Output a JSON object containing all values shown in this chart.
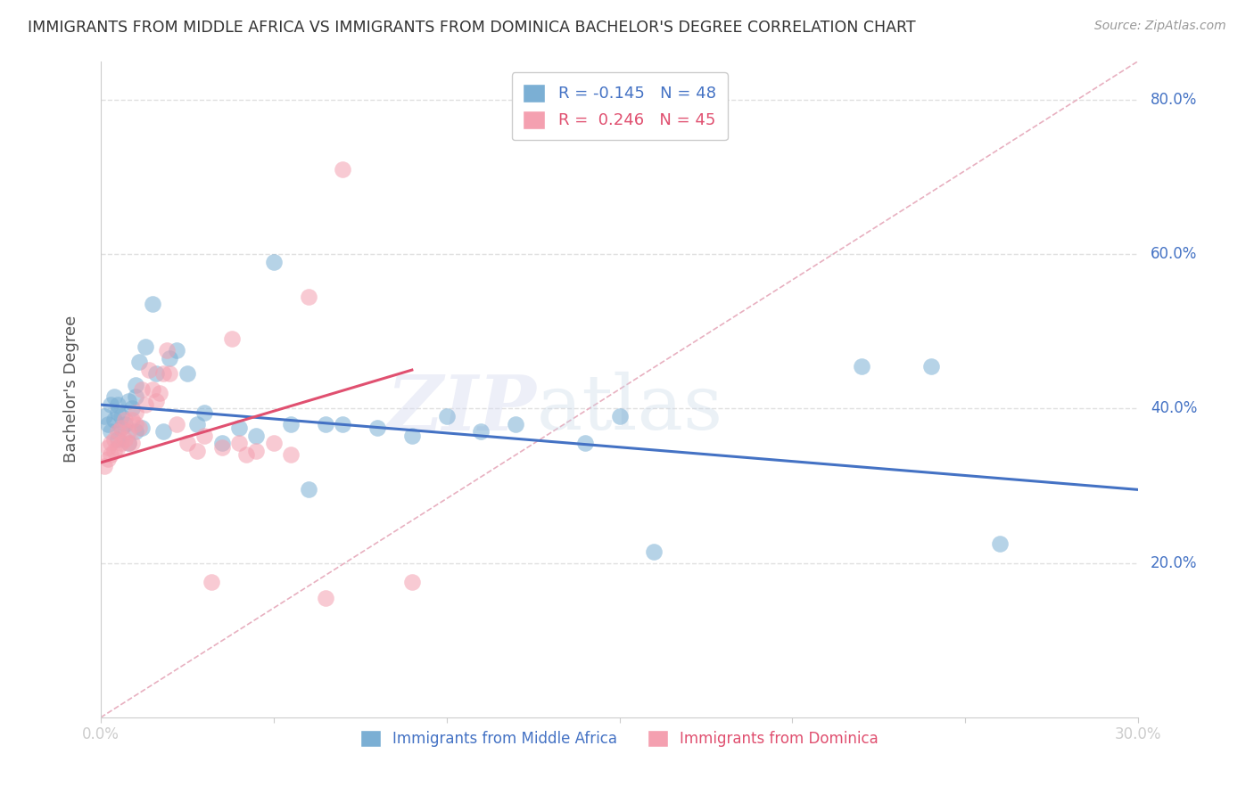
{
  "title": "IMMIGRANTS FROM MIDDLE AFRICA VS IMMIGRANTS FROM DOMINICA BACHELOR'S DEGREE CORRELATION CHART",
  "source": "Source: ZipAtlas.com",
  "ylabel": "Bachelor's Degree",
  "watermark": "ZIPatlas",
  "legend_blue_r": "-0.145",
  "legend_blue_n": "48",
  "legend_pink_r": "0.246",
  "legend_pink_n": "45",
  "xmin": 0.0,
  "xmax": 0.3,
  "ymin": 0.0,
  "ymax": 0.85,
  "yticks": [
    0.2,
    0.4,
    0.6,
    0.8
  ],
  "ytick_labels": [
    "20.0%",
    "40.0%",
    "60.0%",
    "80.0%"
  ],
  "xticks": [
    0.0,
    0.05,
    0.1,
    0.15,
    0.2,
    0.25,
    0.3
  ],
  "xtick_labels": [
    "0.0%",
    "",
    "",
    "",
    "",
    "",
    "30.0%"
  ],
  "blue_scatter_x": [
    0.001,
    0.002,
    0.003,
    0.003,
    0.004,
    0.004,
    0.005,
    0.005,
    0.005,
    0.006,
    0.006,
    0.007,
    0.008,
    0.008,
    0.009,
    0.01,
    0.01,
    0.01,
    0.011,
    0.012,
    0.013,
    0.015,
    0.016,
    0.018,
    0.02,
    0.022,
    0.025,
    0.028,
    0.03,
    0.035,
    0.04,
    0.045,
    0.05,
    0.055,
    0.06,
    0.065,
    0.07,
    0.08,
    0.09,
    0.1,
    0.11,
    0.12,
    0.14,
    0.15,
    0.16,
    0.22,
    0.24,
    0.26
  ],
  "blue_scatter_y": [
    0.39,
    0.38,
    0.405,
    0.37,
    0.415,
    0.385,
    0.395,
    0.36,
    0.405,
    0.375,
    0.39,
    0.38,
    0.41,
    0.355,
    0.4,
    0.37,
    0.415,
    0.43,
    0.46,
    0.375,
    0.48,
    0.535,
    0.445,
    0.37,
    0.465,
    0.475,
    0.445,
    0.38,
    0.395,
    0.355,
    0.375,
    0.365,
    0.59,
    0.38,
    0.295,
    0.38,
    0.38,
    0.375,
    0.365,
    0.39,
    0.37,
    0.38,
    0.355,
    0.39,
    0.215,
    0.455,
    0.455,
    0.225
  ],
  "pink_scatter_x": [
    0.001,
    0.002,
    0.002,
    0.003,
    0.003,
    0.004,
    0.004,
    0.005,
    0.005,
    0.006,
    0.006,
    0.007,
    0.007,
    0.008,
    0.008,
    0.009,
    0.009,
    0.01,
    0.01,
    0.011,
    0.012,
    0.013,
    0.014,
    0.015,
    0.016,
    0.017,
    0.018,
    0.019,
    0.02,
    0.022,
    0.025,
    0.028,
    0.03,
    0.032,
    0.035,
    0.038,
    0.04,
    0.042,
    0.045,
    0.05,
    0.055,
    0.06,
    0.065,
    0.07,
    0.09
  ],
  "pink_scatter_y": [
    0.325,
    0.335,
    0.35,
    0.355,
    0.34,
    0.345,
    0.36,
    0.35,
    0.37,
    0.355,
    0.375,
    0.36,
    0.385,
    0.355,
    0.37,
    0.355,
    0.385,
    0.38,
    0.395,
    0.375,
    0.425,
    0.405,
    0.45,
    0.425,
    0.41,
    0.42,
    0.445,
    0.475,
    0.445,
    0.38,
    0.355,
    0.345,
    0.365,
    0.175,
    0.35,
    0.49,
    0.355,
    0.34,
    0.345,
    0.355,
    0.34,
    0.545,
    0.155,
    0.71,
    0.175
  ],
  "blue_color": "#7BAFD4",
  "pink_color": "#F4A0B0",
  "blue_line_color": "#4472C4",
  "pink_line_color": "#E05070",
  "diagonal_color": "#E8B0C0",
  "grid_color": "#E0E0E0",
  "tick_label_color": "#4472C4",
  "title_color": "#333333",
  "blue_line_x0": 0.0,
  "blue_line_x1": 0.3,
  "blue_line_y0": 0.405,
  "blue_line_y1": 0.295,
  "pink_line_x0": 0.0,
  "pink_line_x1": 0.09,
  "pink_line_y0": 0.33,
  "pink_line_y1": 0.45
}
